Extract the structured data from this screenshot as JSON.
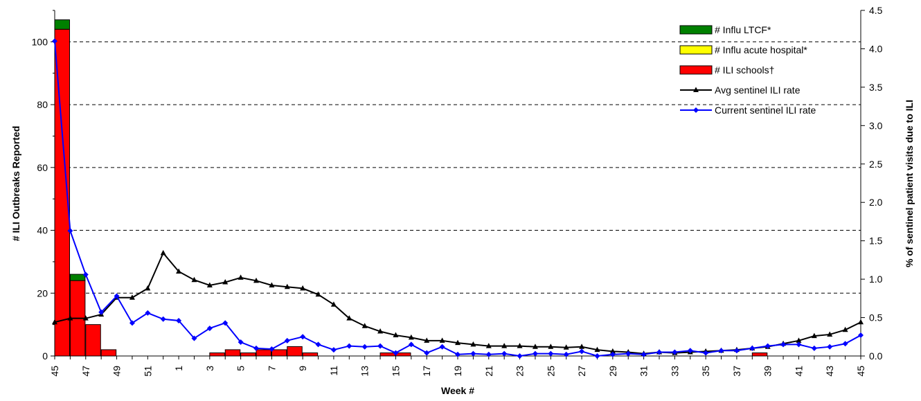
{
  "chart_data": {
    "type": "bar",
    "xlabel": "Week #",
    "ylabel_left": "# ILI Outbreaks Reported",
    "ylabel_right": "% of sentinel patient visits due to ILI",
    "ylim_left": [
      0,
      110
    ],
    "yticks_left": [
      0,
      20,
      40,
      60,
      80,
      100
    ],
    "ylim_right": [
      0,
      4.5
    ],
    "yticks_right": [
      "0.0",
      "0.5",
      "1.0",
      "1.5",
      "2.0",
      "2.5",
      "3.0",
      "3.5",
      "4.0",
      "4.5"
    ],
    "grid": "dashed horizontal at left-axis major ticks",
    "legend_position": "top-right",
    "weeks": [
      45,
      46,
      47,
      48,
      49,
      50,
      51,
      52,
      1,
      2,
      3,
      4,
      5,
      6,
      7,
      8,
      9,
      10,
      11,
      12,
      13,
      14,
      15,
      16,
      17,
      18,
      19,
      20,
      21,
      22,
      23,
      24,
      25,
      26,
      27,
      28,
      29,
      30,
      31,
      32,
      33,
      34,
      35,
      36,
      37,
      38,
      39,
      40,
      41,
      42,
      43,
      44,
      45
    ],
    "x_tick_labels": [
      "45",
      "47",
      "49",
      "51",
      "1",
      "3",
      "5",
      "7",
      "9",
      "11",
      "13",
      "15",
      "17",
      "19",
      "21",
      "23",
      "25",
      "27",
      "29",
      "31",
      "33",
      "35",
      "37",
      "39",
      "41",
      "43",
      "45"
    ],
    "series": [
      {
        "name": "# Influ LTCF*",
        "kind": "stacked-bar",
        "color": "#008000",
        "values": [
          3,
          2,
          0,
          0,
          0,
          0,
          0,
          0,
          0,
          0,
          0,
          0,
          0,
          0,
          0,
          0,
          0,
          0,
          0,
          0,
          0,
          0,
          0,
          0,
          0,
          0,
          0,
          0,
          0,
          0,
          0,
          0,
          0,
          0,
          0,
          0,
          0,
          0,
          0,
          0,
          0,
          0,
          0,
          0,
          0,
          0,
          0,
          0,
          0,
          0,
          0,
          0,
          0
        ]
      },
      {
        "name": "# Influ acute hospital*",
        "kind": "stacked-bar",
        "color": "#ffff00",
        "values": [
          0,
          0,
          0,
          0,
          0,
          0,
          0,
          0,
          0,
          0,
          0,
          0,
          0,
          0,
          0,
          0,
          0,
          0,
          0,
          0,
          0,
          0,
          0,
          0,
          0,
          0,
          0,
          0,
          0,
          0,
          0,
          0,
          0,
          0,
          0,
          0,
          0,
          0,
          0,
          0,
          0,
          0,
          0,
          0,
          0,
          0,
          0,
          0,
          0,
          0,
          0,
          0,
          0
        ]
      },
      {
        "name": "# ILI schools†",
        "kind": "stacked-bar",
        "color": "#ff0000",
        "values": [
          104,
          24,
          10,
          2,
          0,
          0,
          0,
          0,
          0,
          0,
          1,
          2,
          1,
          2,
          2,
          3,
          1,
          0,
          0,
          0,
          0,
          1,
          1,
          0,
          0,
          0,
          0,
          0,
          0,
          0,
          0,
          0,
          0,
          0,
          0,
          0,
          0,
          0,
          0,
          0,
          0,
          0,
          0,
          0,
          0,
          1,
          0,
          0,
          0,
          0,
          0,
          0,
          0
        ]
      },
      {
        "name": "Avg sentinel ILI rate",
        "kind": "line",
        "marker": "triangle",
        "color": "#000000",
        "values": [
          0.44,
          0.49,
          0.49,
          0.54,
          0.76,
          0.76,
          0.88,
          1.34,
          1.1,
          0.99,
          0.92,
          0.96,
          1.02,
          0.98,
          0.92,
          0.9,
          0.88,
          0.8,
          0.67,
          0.49,
          0.39,
          0.32,
          0.27,
          0.24,
          0.2,
          0.2,
          0.17,
          0.15,
          0.13,
          0.13,
          0.13,
          0.12,
          0.12,
          0.11,
          0.12,
          0.08,
          0.06,
          0.05,
          0.03,
          0.05,
          0.04,
          0.05,
          0.06,
          0.07,
          0.08,
          0.1,
          0.12,
          0.16,
          0.2,
          0.26,
          0.28,
          0.34,
          0.44
        ]
      },
      {
        "name": "Current sentinel ILI rate",
        "kind": "line",
        "marker": "diamond",
        "color": "#0000ff",
        "values": [
          4.1,
          1.63,
          1.06,
          0.57,
          0.78,
          0.43,
          0.56,
          0.48,
          0.46,
          0.23,
          0.36,
          0.43,
          0.18,
          0.1,
          0.09,
          0.2,
          0.25,
          0.15,
          0.08,
          0.13,
          0.12,
          0.13,
          0.04,
          0.15,
          0.04,
          0.12,
          0.02,
          0.03,
          0.02,
          0.03,
          0.0,
          0.03,
          0.03,
          0.02,
          0.06,
          0.0,
          0.02,
          0.03,
          0.02,
          0.05,
          0.05,
          0.07,
          0.04,
          0.07,
          0.07,
          0.1,
          0.13,
          0.15,
          0.15,
          0.1,
          0.12,
          0.16,
          0.27
        ]
      }
    ]
  }
}
